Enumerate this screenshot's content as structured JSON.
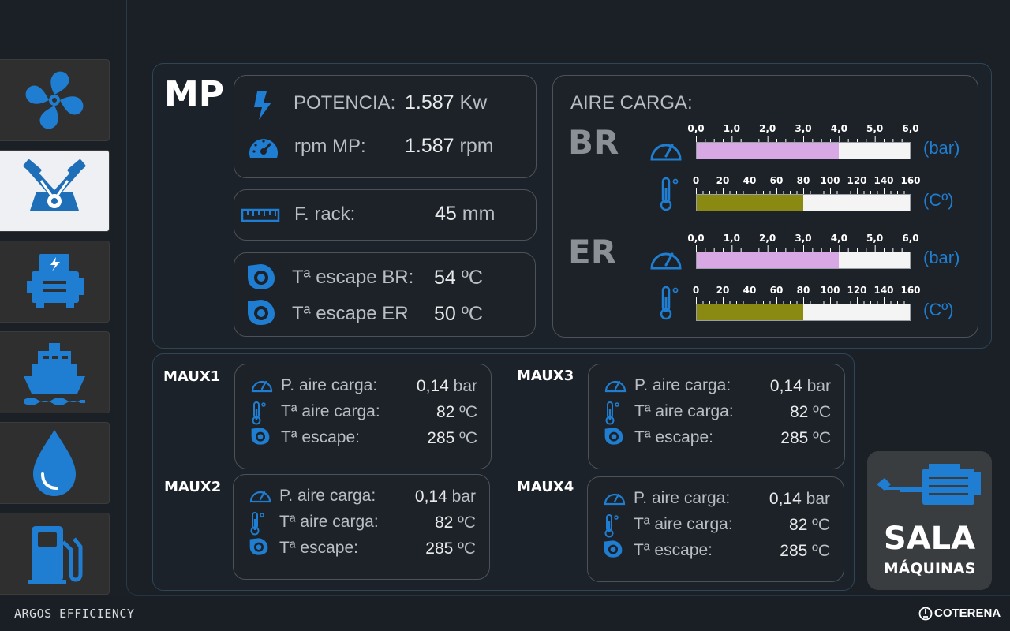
{
  "footer": {
    "brand_left": "ARGOS EFFICIENCY",
    "brand_right": "COTERENA"
  },
  "sidebar": {
    "items": [
      {
        "icon": "fan-icon"
      },
      {
        "icon": "engine-icon"
      },
      {
        "icon": "generator-icon"
      },
      {
        "icon": "ship-icon"
      },
      {
        "icon": "water-drop-icon"
      },
      {
        "icon": "fuel-pump-icon"
      }
    ]
  },
  "mp": {
    "title": "MP",
    "potencia_label": "POTENCIA:",
    "potencia_value": "1.587",
    "potencia_unit": "Kw",
    "rpm_label": "rpm MP:",
    "rpm_value": "1.587",
    "rpm_unit": "rpm",
    "rack_label": "F. rack:",
    "rack_value": "45",
    "rack_unit": "mm",
    "esc_br_label": "Tª escape BR:",
    "esc_br_value": "54",
    "esc_br_unit": "ºC",
    "esc_er_label": "Tª escape ER",
    "esc_er_value": "50",
    "esc_er_unit": "ºC"
  },
  "aire": {
    "title": "AIRE CARGA:",
    "pressure_ticks": [
      "0,0",
      "1,0",
      "2,0",
      "3,0",
      "4,0",
      "5,0",
      "6,0"
    ],
    "temp_ticks": [
      "0",
      "20",
      "40",
      "60",
      "80",
      "100",
      "120",
      "140",
      "160"
    ],
    "pressure_unit": "(bar)",
    "temp_unit": "(Cº)",
    "br": {
      "label": "BR",
      "pressure_fraction": 0.6667,
      "temp_fraction": 0.5
    },
    "er": {
      "label": "ER",
      "pressure_fraction": 0.6667,
      "temp_fraction": 0.5
    },
    "colors": {
      "pressure": "#d8a8e4",
      "temp": "#8a8a12"
    }
  },
  "maux_labels": {
    "p_aire": "P. aire carga:",
    "t_aire": "Tª aire carga:",
    "t_esc": "Tª escape:"
  },
  "maux": [
    {
      "name": "MAUX1",
      "p_value": "0,14",
      "p_unit": "bar",
      "t_aire_value": "82",
      "t_aire_unit": "ºC",
      "t_esc_value": "285",
      "t_esc_unit": "ºC"
    },
    {
      "name": "MAUX2",
      "p_value": "0,14",
      "p_unit": "bar",
      "t_aire_value": "82",
      "t_aire_unit": "ºC",
      "t_esc_value": "285",
      "t_esc_unit": "ºC"
    },
    {
      "name": "MAUX3",
      "p_value": "0,14",
      "p_unit": "bar",
      "t_aire_value": "82",
      "t_aire_unit": "ºC",
      "t_esc_value": "285",
      "t_esc_unit": "ºC"
    },
    {
      "name": "MAUX4",
      "p_value": "0,14",
      "p_unit": "bar",
      "t_aire_value": "82",
      "t_aire_unit": "ºC",
      "t_esc_value": "285",
      "t_esc_unit": "ºC"
    }
  ],
  "sala": {
    "title": "SALA",
    "subtitle": "MÁQUINAS"
  },
  "accent_color": "#1f7ed1"
}
